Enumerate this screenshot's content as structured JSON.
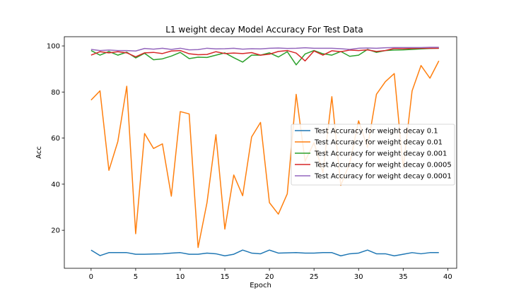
{
  "chart_data": {
    "type": "line",
    "title": "L1 weight decay Model Accuracy For Test Data",
    "xlabel": "Epoch",
    "ylabel": "Acc",
    "xlim": [
      -3,
      41
    ],
    "ylim": [
      3.5,
      104
    ],
    "xticks": [
      0,
      5,
      10,
      15,
      20,
      25,
      30,
      35,
      40
    ],
    "yticks": [
      20,
      40,
      60,
      80,
      100
    ],
    "grid": false,
    "legend_position": "center-right",
    "x": [
      0,
      1,
      2,
      3,
      4,
      5,
      6,
      7,
      8,
      9,
      10,
      11,
      12,
      13,
      14,
      15,
      16,
      17,
      18,
      19,
      20,
      21,
      22,
      23,
      24,
      25,
      26,
      27,
      28,
      29,
      30,
      31,
      32,
      33,
      34,
      35,
      36,
      37,
      38,
      39
    ],
    "series": [
      {
        "name": "Test Accuracy for weight decay 0.1",
        "color": "#1f77b4",
        "values": [
          11.4,
          9.0,
          10.3,
          10.3,
          10.3,
          9.6,
          9.6,
          9.7,
          9.8,
          10.1,
          10.3,
          9.6,
          9.6,
          10.1,
          9.8,
          8.9,
          9.6,
          11.4,
          10.1,
          9.8,
          11.4,
          10.1,
          10.2,
          10.3,
          10.1,
          10.1,
          10.3,
          10.3,
          8.9,
          9.8,
          10.1,
          11.4,
          9.8,
          9.8,
          8.9,
          9.6,
          10.3,
          9.8,
          10.3,
          10.3
        ]
      },
      {
        "name": "Test Accuracy for weight decay 0.01",
        "color": "#ff7f0e",
        "values": [
          76.5,
          80.5,
          46.0,
          58.5,
          82.5,
          18.5,
          62.0,
          55.5,
          57.5,
          34.8,
          71.5,
          70.5,
          12.5,
          32.0,
          61.5,
          20.5,
          44.0,
          35.0,
          60.5,
          66.8,
          32.0,
          27.0,
          35.8,
          79.0,
          50.0,
          58.0,
          45.0,
          78.0,
          39.5,
          49.0,
          67.5,
          56.0,
          79.0,
          84.5,
          88.0,
          47.0,
          80.5,
          91.5,
          86.0,
          93.5
        ]
      },
      {
        "name": "Test Accuracy for weight decay 0.001",
        "color": "#2ca02c",
        "values": [
          98.0,
          96.0,
          97.6,
          96.0,
          97.3,
          94.8,
          96.8,
          94.0,
          94.4,
          95.6,
          97.2,
          94.5,
          95.1,
          95.0,
          96.0,
          97.0,
          94.9,
          93.0,
          96.0,
          96.0,
          97.0,
          95.2,
          97.5,
          91.8,
          96.5,
          98.0,
          96.6,
          96.0,
          97.6,
          95.5,
          96.0,
          98.5,
          97.2,
          98.0,
          98.2,
          98.3,
          98.5,
          98.7,
          98.9,
          99.0
        ]
      },
      {
        "name": "Test Accuracy for weight decay 0.0005",
        "color": "#d62728",
        "values": [
          96.0,
          97.5,
          97.0,
          97.5,
          97.0,
          95.3,
          97.0,
          97.2,
          96.7,
          97.8,
          98.0,
          96.6,
          96.2,
          96.3,
          97.5,
          96.7,
          96.9,
          96.7,
          97.1,
          96.0,
          96.4,
          97.6,
          98.0,
          96.9,
          93.5,
          97.8,
          96.0,
          97.9,
          97.5,
          98.2,
          98.0,
          98.3,
          97.6,
          98.0,
          98.9,
          98.8,
          98.9,
          99.0,
          99.0,
          99.0
        ]
      },
      {
        "name": "Test Accuracy for weight decay 0.0001",
        "color": "#9467bd",
        "values": [
          98.5,
          98.0,
          98.2,
          98.0,
          98.0,
          97.8,
          98.9,
          98.6,
          99.0,
          98.5,
          99.0,
          98.3,
          98.4,
          99.0,
          98.7,
          98.8,
          99.0,
          98.6,
          98.8,
          98.7,
          99.0,
          99.1,
          98.9,
          99.0,
          99.2,
          99.0,
          99.0,
          99.0,
          98.8,
          98.5,
          99.0,
          99.1,
          99.0,
          99.2,
          99.3,
          99.3,
          99.3,
          99.3,
          99.4,
          99.4
        ]
      }
    ]
  }
}
